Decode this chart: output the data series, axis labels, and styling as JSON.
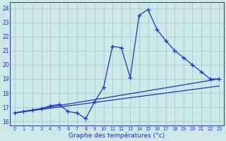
{
  "xlabel": "Graphe des températures (°c)",
  "bg_color": "#cce8e8",
  "grid_color": "#aacccc",
  "line_color": "#2233bb",
  "xlim": [
    -0.5,
    23.5
  ],
  "ylim": [
    15.7,
    24.4
  ],
  "yticks": [
    16,
    17,
    18,
    19,
    20,
    21,
    22,
    23,
    24
  ],
  "xticks": [
    0,
    1,
    2,
    3,
    4,
    5,
    6,
    7,
    8,
    9,
    10,
    11,
    12,
    13,
    14,
    15,
    16,
    17,
    18,
    19,
    20,
    21,
    22,
    23
  ],
  "main_x": [
    0,
    1,
    2,
    3,
    4,
    5,
    6,
    7,
    8,
    9,
    10,
    11,
    12,
    13,
    14,
    15,
    16,
    17,
    18,
    19,
    20,
    21,
    22,
    23
  ],
  "main_y": [
    16.6,
    16.7,
    16.8,
    16.9,
    17.1,
    17.2,
    16.7,
    16.6,
    16.2,
    17.4,
    18.4,
    21.3,
    21.2,
    19.1,
    23.5,
    23.9,
    22.5,
    21.7,
    21.0,
    20.5,
    20.0,
    19.5,
    19.0,
    19.0
  ],
  "trend1_x": [
    0,
    23
  ],
  "trend1_y": [
    16.6,
    19.0
  ],
  "trend2_x": [
    0,
    23
  ],
  "trend2_y": [
    16.6,
    18.5
  ],
  "figsize": [
    3.2,
    2.0
  ],
  "dpi": 100
}
